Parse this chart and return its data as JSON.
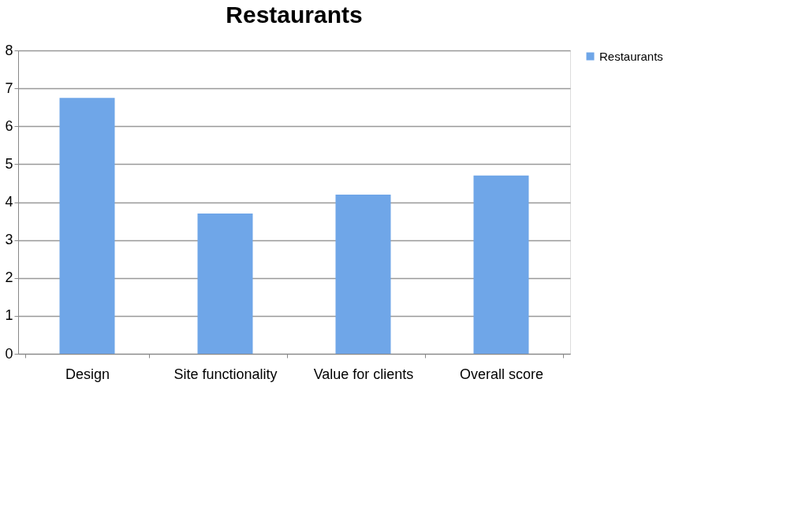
{
  "chart_data": {
    "type": "bar",
    "title": "Restaurants",
    "categories": [
      "Design",
      "Site functionality",
      "Value for clients",
      "Overall score"
    ],
    "series": [
      {
        "name": "Restaurants",
        "color": "#6fa6e8",
        "values": [
          6.75,
          3.7,
          4.2,
          4.7
        ]
      }
    ],
    "ylim": [
      0,
      8
    ],
    "yticks": [
      0,
      1,
      2,
      3,
      4,
      5,
      6,
      7,
      8
    ],
    "grid": "y",
    "legend": "right"
  }
}
